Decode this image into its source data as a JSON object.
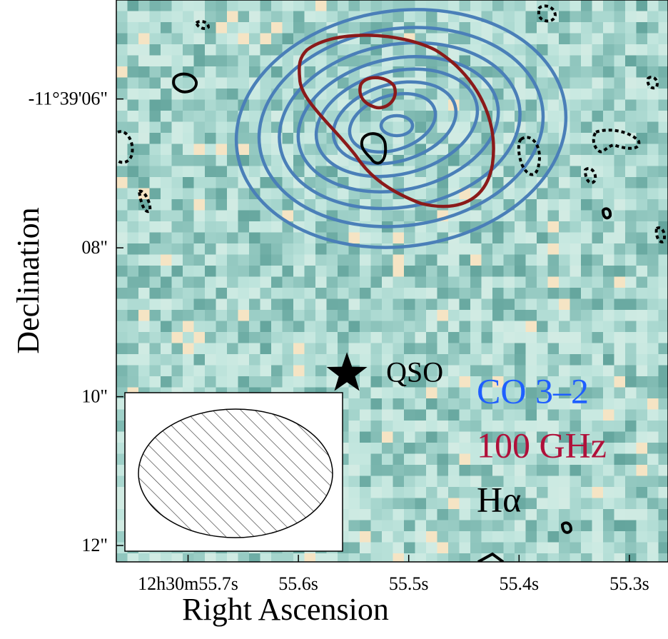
{
  "chart_data": {
    "type": "image",
    "xlabel": "Right Ascension",
    "ylabel": "Declination",
    "xlim": [
      55.765,
      55.265
    ],
    "ylim": [
      4.67,
      12.22
    ],
    "xticks": [
      {
        "value": 55.7,
        "label": "12h30m55.7s"
      },
      {
        "value": 55.6,
        "label": "55.6s"
      },
      {
        "value": 55.5,
        "label": "55.5s"
      },
      {
        "value": 55.4,
        "label": "55.4s"
      },
      {
        "value": 55.3,
        "label": "55.3s"
      }
    ],
    "yticks": [
      {
        "value": 6,
        "label": "-11°39'06\""
      },
      {
        "value": 8,
        "label": "08\""
      },
      {
        "value": 10,
        "label": "10\""
      },
      {
        "value": 12,
        "label": "12\""
      }
    ],
    "series": [
      {
        "name": "CO 3–2",
        "color": "#1f5fff"
      },
      {
        "name": "100 GHz",
        "color": "#b0103a"
      },
      {
        "name": "Hα",
        "color": "#000000"
      }
    ],
    "annotations": [
      {
        "text": "QSO",
        "x": 55.556,
        "y": 9.69
      }
    ]
  }
}
